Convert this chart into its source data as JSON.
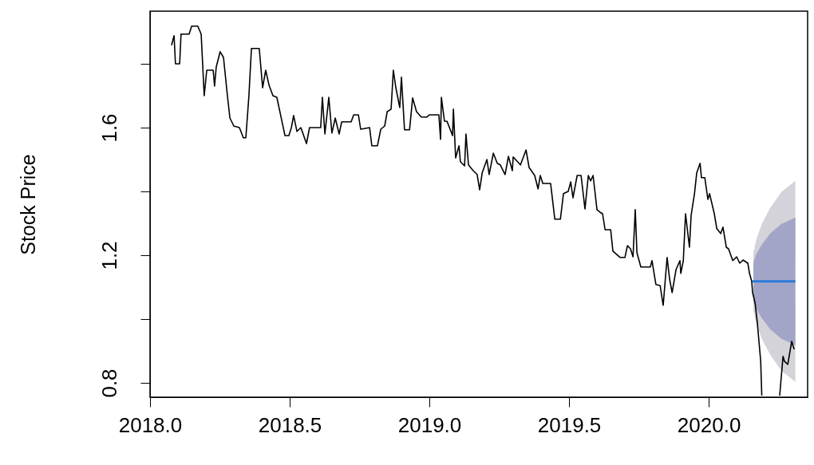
{
  "chart_data": {
    "type": "line",
    "ylabel": "Stock Price",
    "xlim": [
      2018.0,
      2020.354
    ],
    "ylim": [
      0.755,
      1.965
    ],
    "xticks": [
      {
        "value": 2018,
        "label": "2018.0"
      },
      {
        "value": 2018.5,
        "label": "2018.5"
      },
      {
        "value": 2019,
        "label": "2019.0"
      },
      {
        "value": 2019.5,
        "label": "2019.5"
      },
      {
        "value": 2020,
        "label": "2020.0"
      }
    ],
    "yticks": [
      0.8,
      {
        "value": 1.0,
        "label": null
      },
      1.2,
      {
        "value": 1.4,
        "label": null
      },
      1.6,
      {
        "value": 1.8,
        "label": null
      }
    ],
    "grid": false,
    "line_style": "solid",
    "marker": "none",
    "series": [
      {
        "color": "#000000",
        "x": [
          2018.077,
          2018.086,
          2018.091,
          2018.106,
          2018.111,
          2018.14,
          2018.149,
          2018.171,
          2018.183,
          2018.194,
          2018.203,
          2018.226,
          2018.231,
          2018.237,
          2018.251,
          2018.263,
          2018.277,
          2018.286,
          2018.3,
          2018.32,
          2018.334,
          2018.343,
          2018.354,
          2018.363,
          2018.391,
          2018.403,
          2018.414,
          2018.426,
          2018.44,
          2018.454,
          2018.469,
          2018.483,
          2018.497,
          2018.506,
          2018.514,
          2018.526,
          2018.54,
          2018.56,
          2018.571,
          2018.611,
          2018.617,
          2018.626,
          2018.64,
          2018.651,
          2018.663,
          2018.677,
          2018.686,
          2018.72,
          2018.729,
          2018.746,
          2018.754,
          2018.786,
          2018.794,
          2018.814,
          2018.826,
          2018.84,
          2018.849,
          2018.863,
          2018.871,
          2018.88,
          2018.894,
          2018.9,
          2018.911,
          2018.929,
          2018.94,
          2018.954,
          2018.971,
          2018.991,
          2019.0,
          2019.034,
          2019.04,
          2019.043,
          2019.054,
          2019.063,
          2019.083,
          2019.086,
          2019.094,
          2019.106,
          2019.111,
          2019.126,
          2019.131,
          2019.14,
          2019.157,
          2019.171,
          2019.18,
          2019.189,
          2019.206,
          2019.214,
          2019.229,
          2019.243,
          2019.254,
          2019.271,
          2019.283,
          2019.297,
          2019.3,
          2019.326,
          2019.346,
          2019.357,
          2019.377,
          2019.389,
          2019.397,
          2019.406,
          2019.434,
          2019.449,
          2019.469,
          2019.48,
          2019.497,
          2019.506,
          2019.514,
          2019.529,
          2019.543,
          2019.557,
          2019.569,
          2019.577,
          2019.586,
          2019.6,
          2019.614,
          2019.62,
          2019.629,
          2019.649,
          2019.657,
          2019.683,
          2019.7,
          2019.709,
          2019.72,
          2019.729,
          2019.737,
          2019.743,
          2019.757,
          2019.791,
          2019.797,
          2019.811,
          2019.826,
          2019.837,
          2019.851,
          2019.86,
          2019.869,
          2019.883,
          2019.897,
          2019.9,
          2019.909,
          2019.917,
          2019.931,
          2019.937,
          2019.949,
          2019.957,
          2019.969,
          2019.974,
          2019.986,
          2019.997,
          2020.003,
          2020.02,
          2020.029,
          2020.043,
          2020.051,
          2020.063,
          2020.071,
          2020.086,
          2020.1,
          2020.111,
          2020.123,
          2020.14,
          2020.146,
          2020.154,
          2020.157,
          2020.166,
          2020.174,
          2020.186,
          2020.19,
          2020.22,
          2020.254,
          2020.266,
          2020.271,
          2020.283,
          2020.297,
          2020.306
        ],
        "values": [
          1.858,
          1.888,
          1.8,
          1.8,
          1.893,
          1.893,
          1.918,
          1.918,
          1.893,
          1.7,
          1.78,
          1.78,
          1.73,
          1.79,
          1.838,
          1.82,
          1.7,
          1.63,
          1.605,
          1.6,
          1.568,
          1.568,
          1.7,
          1.848,
          1.848,
          1.725,
          1.78,
          1.733,
          1.7,
          1.695,
          1.633,
          1.575,
          1.575,
          1.6,
          1.638,
          1.588,
          1.6,
          1.55,
          1.6,
          1.6,
          1.695,
          1.58,
          1.695,
          1.583,
          1.63,
          1.58,
          1.618,
          1.618,
          1.64,
          1.64,
          1.595,
          1.6,
          1.543,
          1.543,
          1.595,
          1.605,
          1.65,
          1.658,
          1.78,
          1.725,
          1.663,
          1.758,
          1.593,
          1.593,
          1.693,
          1.65,
          1.633,
          1.633,
          1.64,
          1.64,
          1.563,
          1.695,
          1.62,
          1.62,
          1.575,
          1.658,
          1.505,
          1.543,
          1.493,
          1.48,
          1.58,
          1.483,
          1.465,
          1.453,
          1.405,
          1.458,
          1.5,
          1.453,
          1.52,
          1.488,
          1.483,
          1.453,
          1.51,
          1.465,
          1.508,
          1.483,
          1.53,
          1.475,
          1.45,
          1.408,
          1.45,
          1.425,
          1.425,
          1.313,
          1.313,
          1.393,
          1.4,
          1.43,
          1.38,
          1.45,
          1.45,
          1.345,
          1.45,
          1.433,
          1.45,
          1.343,
          1.333,
          1.33,
          1.28,
          1.28,
          1.213,
          1.193,
          1.193,
          1.23,
          1.22,
          1.195,
          1.343,
          1.208,
          1.163,
          1.163,
          1.183,
          1.108,
          1.105,
          1.043,
          1.193,
          1.125,
          1.083,
          1.155,
          1.183,
          1.143,
          1.183,
          1.33,
          1.225,
          1.325,
          1.393,
          1.458,
          1.488,
          1.443,
          1.443,
          1.375,
          1.393,
          1.33,
          1.283,
          1.268,
          1.288,
          1.225,
          1.22,
          1.183,
          1.195,
          1.175,
          1.185,
          1.175,
          1.143,
          1.118,
          1.083,
          1.05,
          0.988,
          0.868,
          0.76,
          null,
          0.76,
          0.883,
          0.868,
          0.858,
          0.93,
          0.905
        ]
      },
      {
        "color": "#d3d3d9",
        "x": [
          2020.16,
          2020.17,
          2020.19,
          2020.22,
          2020.26,
          2020.31
        ],
        "values": [
          null,
          null,
          null,
          null,
          null,
          null
        ],
        "lower": [
          1.028,
          0.988,
          0.938,
          0.888,
          0.838,
          0.803
        ],
        "upper": [
          1.208,
          1.248,
          1.298,
          1.348,
          1.398,
          1.433
        ]
      },
      {
        "color": "#a3a5c8",
        "x": [
          2020.16,
          2020.17,
          2020.19,
          2020.22,
          2020.26,
          2020.31
        ],
        "values": [
          null,
          null,
          null,
          null,
          null,
          null
        ],
        "lower": [
          1.058,
          1.033,
          1.003,
          0.968,
          0.938,
          0.918
        ],
        "upper": [
          1.178,
          1.203,
          1.233,
          1.268,
          1.298,
          1.318
        ]
      },
      {
        "color": "#2b7bd9",
        "x": [
          2020.157,
          2020.31
        ],
        "values": [
          1.118,
          1.118
        ]
      }
    ]
  }
}
